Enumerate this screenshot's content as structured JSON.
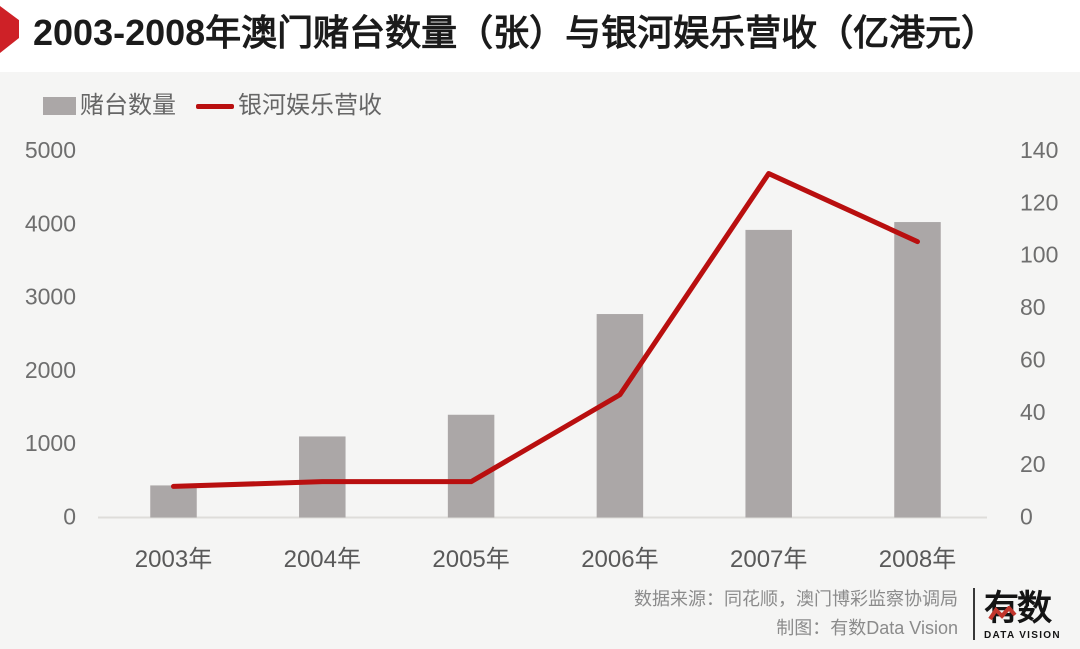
{
  "header": {
    "title": "2003-2008年澳门赌台数量（张）与银河娱乐营收（亿港元）"
  },
  "legend": {
    "items": [
      {
        "label": "赌台数量",
        "type": "bar",
        "color": "#aba7a7"
      },
      {
        "label": "银河娱乐营收",
        "type": "line",
        "color": "#b90f0f"
      }
    ]
  },
  "chart_data": {
    "type": "bar+line combo",
    "title": "2003-2008年澳门赌台数量（张）与银河娱乐营收（亿港元）",
    "categories": [
      "2003年",
      "2004年",
      "2005年",
      "2006年",
      "2007年",
      "2008年"
    ],
    "series": [
      {
        "name": "赌台数量",
        "type": "bar",
        "axis": "left",
        "unit": "张",
        "color": "#aba7a7",
        "values": [
          424,
          1092,
          1388,
          2762,
          3910,
          4017
        ]
      },
      {
        "name": "银河娱乐营收",
        "type": "line",
        "axis": "right",
        "unit": "亿港元",
        "color": "#b90f0f",
        "values": [
          11.5,
          13.3,
          13.3,
          46.5,
          131,
          105
        ]
      }
    ],
    "left_axis": {
      "range": [
        0,
        5000
      ],
      "ticks": [
        0,
        1000,
        2000,
        3000,
        4000,
        5000
      ]
    },
    "right_axis": {
      "range": [
        0,
        140
      ],
      "ticks": [
        0,
        20,
        40,
        60,
        80,
        100,
        120,
        140
      ]
    },
    "grid": false,
    "legend_position": "top-left"
  },
  "footer": {
    "source_line": "数据来源：同花顺，澳门博彩监察协调局",
    "credit_line": "制图：有数Data Vision",
    "logo_text": "有数",
    "logo_subtext": "DATA VISION"
  },
  "colors": {
    "badge_red": "#ce2127",
    "line_red": "#b90f0f",
    "bar_gray": "#aba7a7",
    "panel_bg": "#f5f5f4",
    "header_bg": "#ffffff",
    "axis_line": "#deddda"
  }
}
